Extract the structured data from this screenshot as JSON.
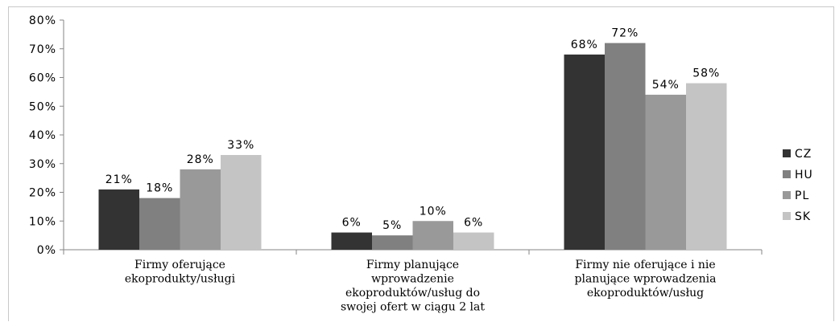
{
  "chart_data": {
    "type": "bar",
    "categories": [
      [
        "Firmy oferujące",
        "ekoprodukty/usługi"
      ],
      [
        "Firmy planujące",
        "wprowadzenie",
        "ekoproduktów/usług do",
        "swojej ofert w ciągu 2 lat"
      ],
      [
        "Firmy nie oferujące i nie",
        "planujące wprowadzenia",
        "ekoproduktów/usług"
      ]
    ],
    "series": [
      {
        "name": "CZ",
        "color": "#333333",
        "values": [
          21,
          6,
          68
        ],
        "labels": [
          "21%",
          "6%",
          "68%"
        ]
      },
      {
        "name": "HU",
        "color": "#808080",
        "values": [
          18,
          5,
          72
        ],
        "labels": [
          "18%",
          "5%",
          "72%"
        ]
      },
      {
        "name": "PL",
        "color": "#999999",
        "values": [
          28,
          10,
          54
        ],
        "labels": [
          "28%",
          "10%",
          "54%"
        ]
      },
      {
        "name": "SK",
        "color": "#c4c4c4",
        "values": [
          33,
          6,
          58
        ],
        "labels": [
          "33%",
          "6%",
          "58%"
        ]
      }
    ],
    "yticks": [
      "0%",
      "10%",
      "20%",
      "30%",
      "40%",
      "50%",
      "60%",
      "70%",
      "80%"
    ],
    "ylim": [
      0,
      80
    ],
    "legend_position": "right",
    "grid": false
  }
}
